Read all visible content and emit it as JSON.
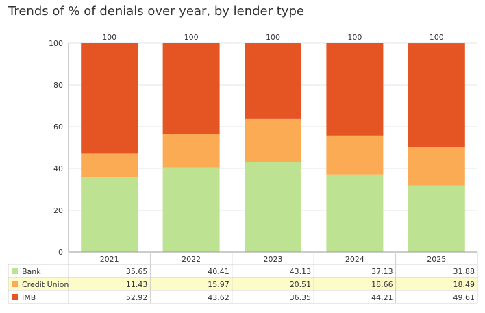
{
  "title": "Trends of % of denials over year, by lender type",
  "chart_data": {
    "type": "bar",
    "stacked": true,
    "categories": [
      "2021",
      "2022",
      "2023",
      "2024",
      "2025"
    ],
    "series": [
      {
        "name": "Bank",
        "color": "#bde392",
        "values": [
          35.65,
          40.41,
          43.13,
          37.13,
          31.88
        ]
      },
      {
        "name": "Credit Union",
        "color": "#fbab54",
        "values": [
          11.43,
          15.97,
          20.51,
          18.66,
          18.49
        ]
      },
      {
        "name": "IMB",
        "color": "#e55523",
        "values": [
          52.92,
          43.62,
          36.35,
          44.21,
          49.61
        ]
      }
    ],
    "totals": [
      "100",
      "100",
      "100",
      "100",
      "100"
    ],
    "ylim": [
      0,
      100
    ],
    "yticks": [
      "0",
      "20",
      "40",
      "60",
      "80",
      "100"
    ],
    "grid": true,
    "highlight_row_color": "#fdfbc8",
    "legend": "data-table-below"
  }
}
